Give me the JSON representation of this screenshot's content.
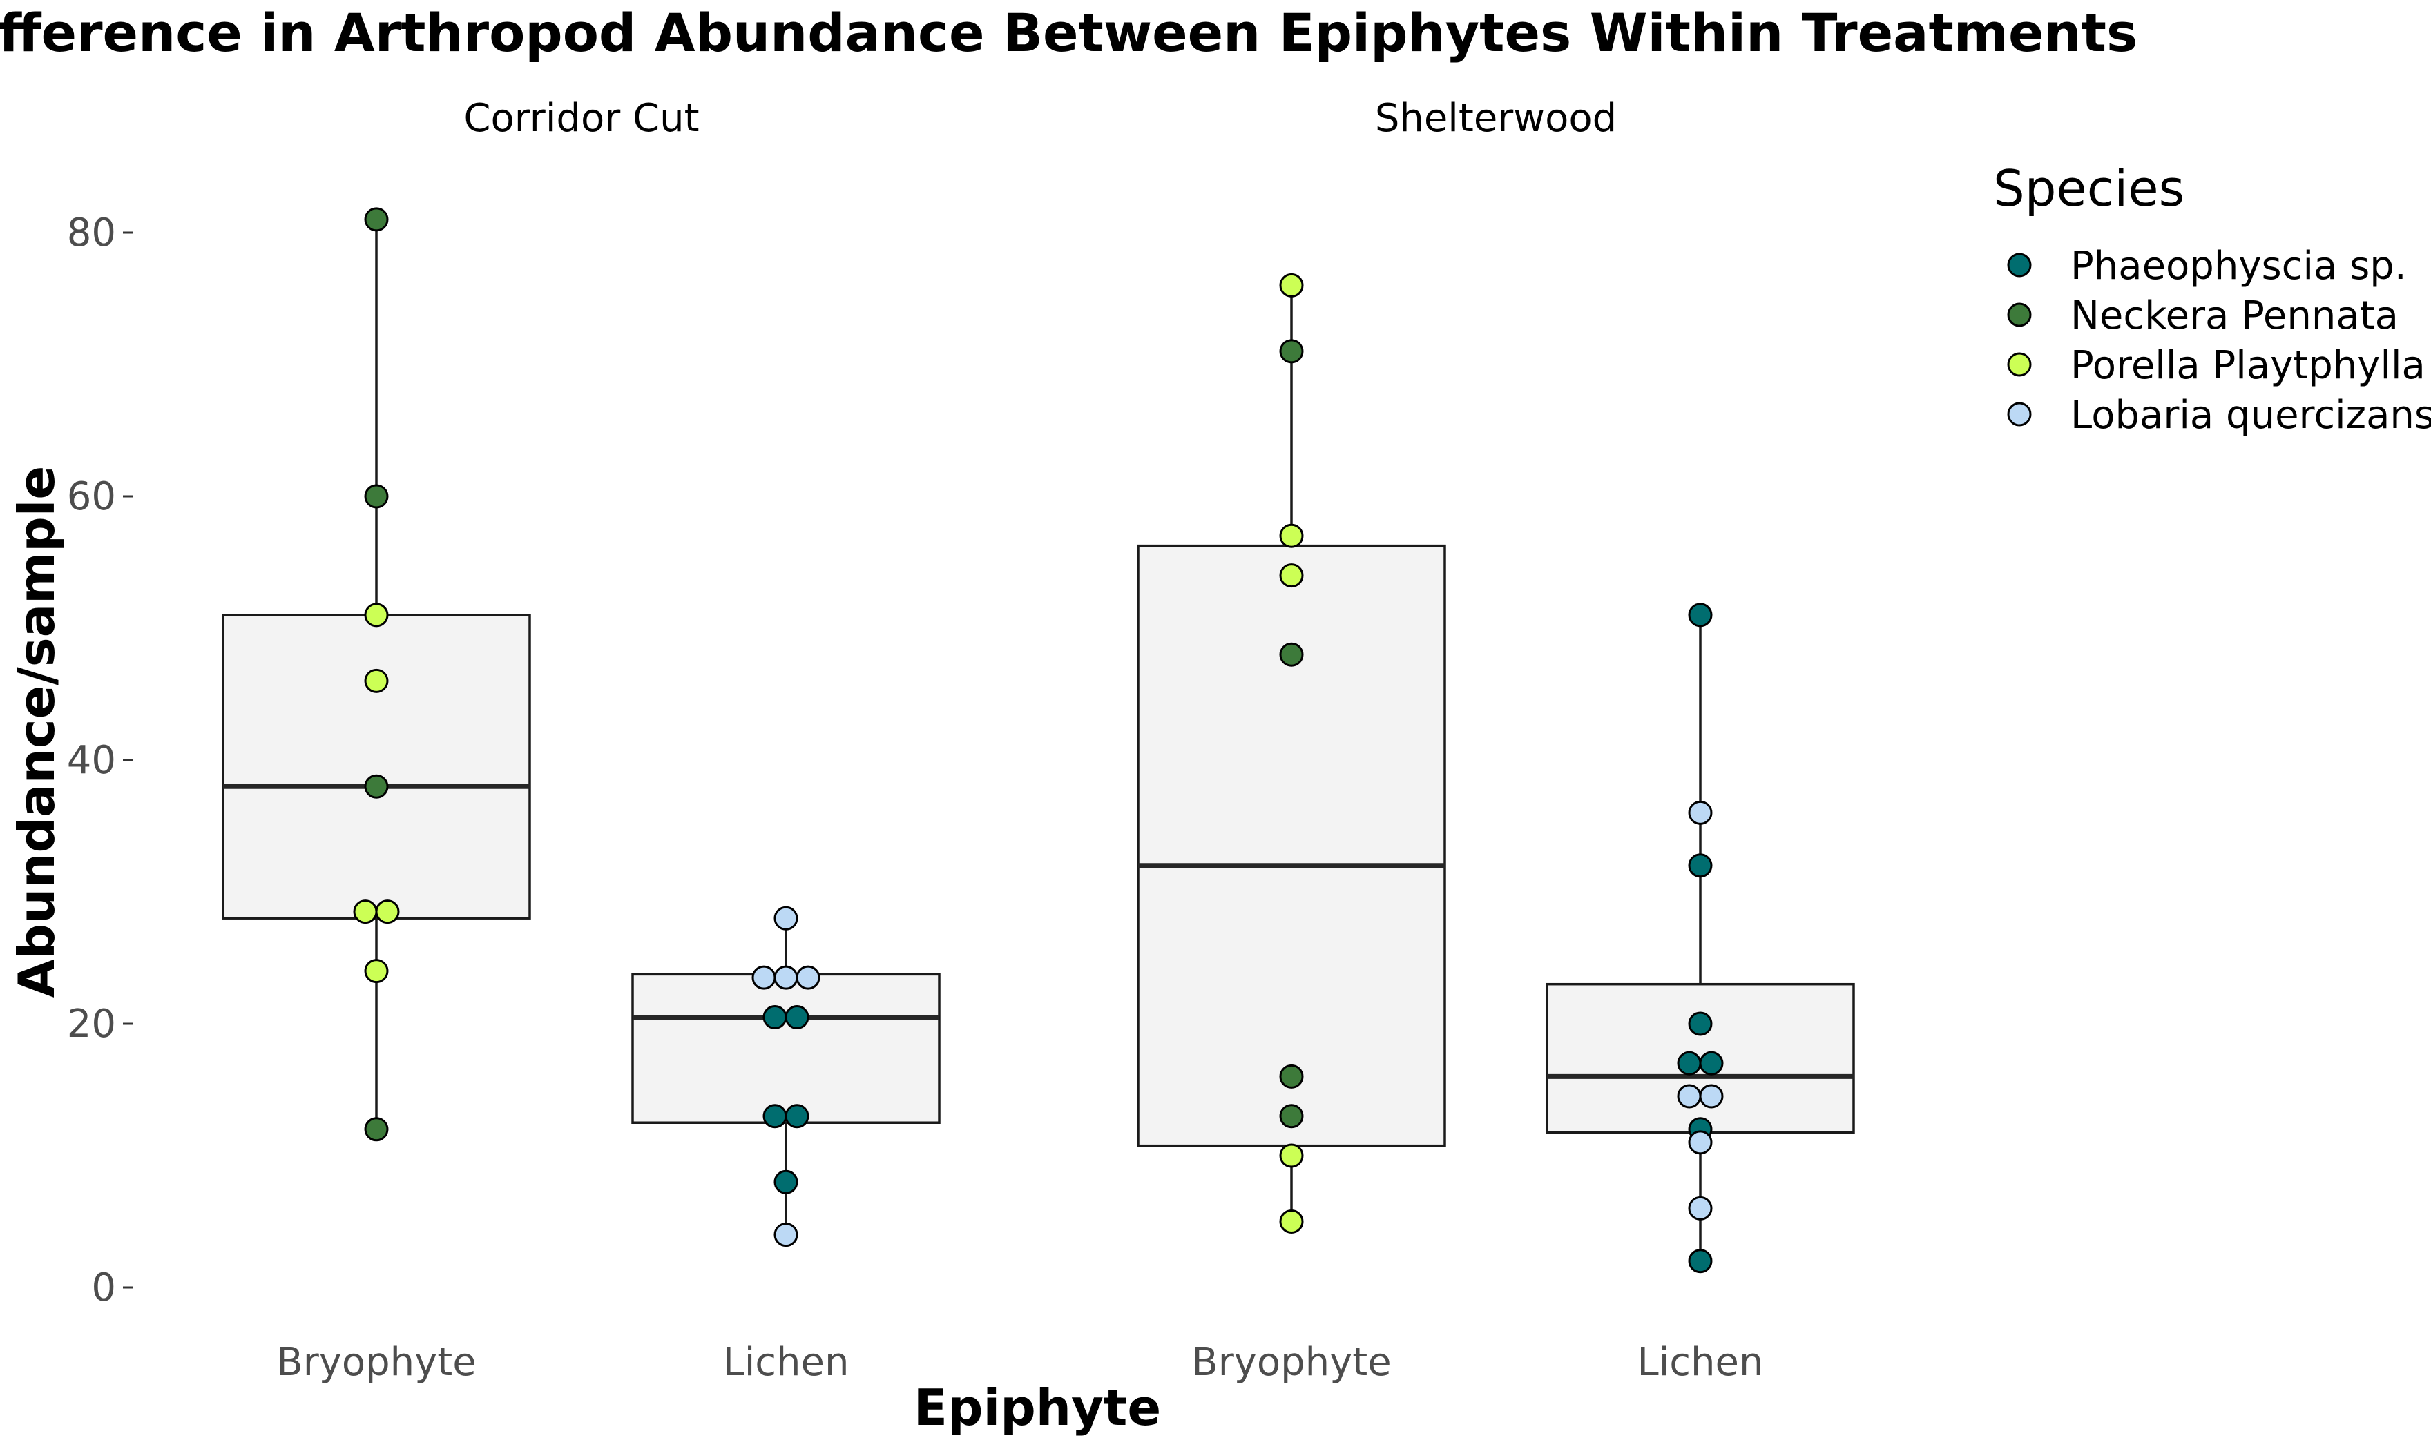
{
  "chart_data": {
    "type": "box",
    "title": "Difference in Arthropod Abundance Between Epiphytes Within Treatments",
    "xlabel": "Epiphyte",
    "ylabel": "Abundance/sample",
    "ylim": [
      -3,
      89
    ],
    "yticks": [
      0,
      20,
      40,
      60,
      80
    ],
    "grid": false,
    "legend_position": "right",
    "legend_title": "Species",
    "species": [
      {
        "name": "Phaeophyscia sp.",
        "color": "#006d6f"
      },
      {
        "name": "Neckera Pennata",
        "color": "#3d7a3a"
      },
      {
        "name": "Porella Playtphylla",
        "color": "#ccff55"
      },
      {
        "name": "Lobaria quercizans",
        "color": "#bcd9f5"
      }
    ],
    "facets": [
      {
        "label": "Corridor Cut",
        "groups": [
          {
            "category": "Bryophyte",
            "box": {
              "q1": 28,
              "median": 38,
              "q3": 51,
              "whisker_low": 12,
              "whisker_high": 81
            },
            "points": [
              {
                "species": 1,
                "value": 81
              },
              {
                "species": 1,
                "value": 60
              },
              {
                "species": 2,
                "value": 51
              },
              {
                "species": 2,
                "value": 46
              },
              {
                "species": 1,
                "value": 38
              },
              {
                "species": 2,
                "value": 28.5
              },
              {
                "species": 2,
                "value": 28.5
              },
              {
                "species": 2,
                "value": 24
              },
              {
                "species": 1,
                "value": 12
              }
            ]
          },
          {
            "category": "Lichen",
            "box": {
              "q1": 12.5,
              "median": 20.5,
              "q3": 23.75,
              "whisker_low": 4,
              "whisker_high": 28
            },
            "points": [
              {
                "species": 3,
                "value": 28
              },
              {
                "species": 3,
                "value": 23.5
              },
              {
                "species": 3,
                "value": 23.5
              },
              {
                "species": 3,
                "value": 23.5
              },
              {
                "species": 0,
                "value": 20.5
              },
              {
                "species": 0,
                "value": 20.5
              },
              {
                "species": 0,
                "value": 13
              },
              {
                "species": 0,
                "value": 13
              },
              {
                "species": 0,
                "value": 8
              },
              {
                "species": 3,
                "value": 4
              }
            ]
          }
        ]
      },
      {
        "label": "Shelterwood",
        "groups": [
          {
            "category": "Bryophyte",
            "box": {
              "q1": 10.75,
              "median": 32,
              "q3": 56.25,
              "whisker_low": 5,
              "whisker_high": 76
            },
            "points": [
              {
                "species": 2,
                "value": 76
              },
              {
                "species": 1,
                "value": 71
              },
              {
                "species": 2,
                "value": 57
              },
              {
                "species": 2,
                "value": 54
              },
              {
                "species": 1,
                "value": 48
              },
              {
                "species": 1,
                "value": 16
              },
              {
                "species": 1,
                "value": 13
              },
              {
                "species": 2,
                "value": 10
              },
              {
                "species": 2,
                "value": 5
              }
            ]
          },
          {
            "category": "Lichen",
            "box": {
              "q1": 11.75,
              "median": 16,
              "q3": 23,
              "whisker_low": 2,
              "whisker_high": 51
            },
            "points": [
              {
                "species": 0,
                "value": 51
              },
              {
                "species": 3,
                "value": 36
              },
              {
                "species": 0,
                "value": 32
              },
              {
                "species": 0,
                "value": 20
              },
              {
                "species": 0,
                "value": 17
              },
              {
                "species": 0,
                "value": 17
              },
              {
                "species": 3,
                "value": 14.5
              },
              {
                "species": 3,
                "value": 14.5
              },
              {
                "species": 0,
                "value": 12
              },
              {
                "species": 3,
                "value": 11
              },
              {
                "species": 3,
                "value": 6
              },
              {
                "species": 0,
                "value": 2
              }
            ]
          }
        ]
      }
    ]
  }
}
